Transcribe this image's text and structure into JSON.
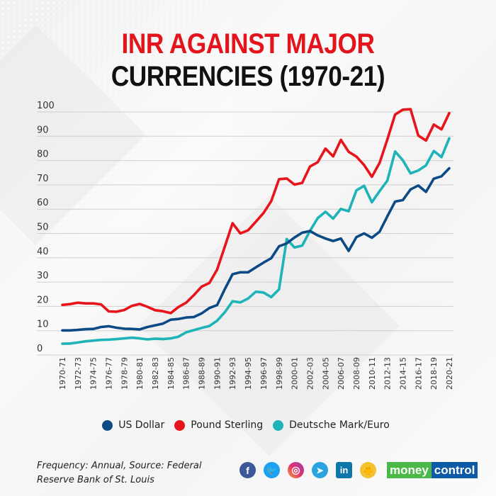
{
  "header": {
    "title_line1": "INR AGAINST MAJOR",
    "title_line2": "CURRENCIES (1970-21)"
  },
  "colors": {
    "us_dollar": "#0c4a86",
    "pound_sterling": "#e8141c",
    "deutsche_mark_euro": "#1db3b8",
    "title_red": "#e3141b",
    "gridline": "#cfcfcf"
  },
  "chart_data": {
    "type": "line",
    "title": "INR AGAINST MAJOR CURRENCIES (1970-21)",
    "xlabel": "",
    "ylabel": "",
    "ylim": [
      0,
      100
    ],
    "yticks": [
      0,
      10,
      20,
      30,
      40,
      50,
      60,
      70,
      80,
      90,
      100
    ],
    "grid": true,
    "legend_position": "bottom",
    "x": [
      "1970-71",
      "1971-72",
      "1972-73",
      "1973-74",
      "1974-75",
      "1975-76",
      "1976-77",
      "1977-78",
      "1978-79",
      "1979-80",
      "1980-81",
      "1981-82",
      "1982-83",
      "1983-84",
      "1984-85",
      "1985-86",
      "1986-87",
      "1987-88",
      "1988-89",
      "1989-90",
      "1990-91",
      "1991-92",
      "1992-93",
      "1993-94",
      "1994-95",
      "1995-96",
      "1996-97",
      "1997-98",
      "1998-99",
      "1999-00",
      "2000-01",
      "2001-02",
      "2002-03",
      "2003-04",
      "2004-05",
      "2005-06",
      "2006-07",
      "2007-08",
      "2008-09",
      "2009-10",
      "2010-11",
      "2011-12",
      "2012-13",
      "2013-14",
      "2014-15",
      "2015-16",
      "2016-17",
      "2017-18",
      "2018-19",
      "2019-20",
      "2020-21"
    ],
    "xtick_labels": [
      "1970-71",
      "1972-73",
      "1974-75",
      "1976-77",
      "1978-79",
      "1980-81",
      "1982-83",
      "1984-85",
      "1986-87",
      "1988-89",
      "1990-91",
      "1992-93",
      "1994-95",
      "1996-97",
      "1998-99",
      "2000-01",
      "2002-03",
      "2004-05",
      "2006-07",
      "2008-09",
      "2010-11",
      "2012-13",
      "2014-15",
      "2016-17",
      "2018-19",
      "2020-21"
    ],
    "series": [
      {
        "name": "US Dollar",
        "color": "#0c4a86",
        "values": [
          7.5,
          7.5,
          7.7,
          8.0,
          8.1,
          8.9,
          9.2,
          8.6,
          8.2,
          8.1,
          7.9,
          8.9,
          9.6,
          10.3,
          11.9,
          12.2,
          12.8,
          13.0,
          14.5,
          16.7,
          17.9,
          24.5,
          30.6,
          31.4,
          31.4,
          33.4,
          35.4,
          37.2,
          42.1,
          43.3,
          45.7,
          47.7,
          48.4,
          46.6,
          45.3,
          44.3,
          45.3,
          40.2,
          45.9,
          47.4,
          45.6,
          48.1,
          54.4,
          60.5,
          61.1,
          65.5,
          67.1,
          64.5,
          69.9,
          70.9,
          74.2
        ]
      },
      {
        "name": "Pound Sterling",
        "color": "#e8141c",
        "values": [
          18.0,
          18.3,
          18.9,
          18.6,
          18.6,
          18.2,
          15.3,
          15.2,
          15.9,
          17.6,
          18.4,
          17.2,
          15.8,
          15.4,
          14.6,
          17.1,
          18.9,
          22.0,
          25.5,
          27.0,
          32.5,
          42.0,
          51.6,
          47.4,
          48.7,
          52.2,
          55.8,
          60.7,
          69.7,
          70.0,
          67.5,
          68.2,
          74.9,
          76.7,
          82.3,
          79.1,
          85.9,
          81.0,
          79.0,
          75.5,
          70.7,
          76.4,
          86.0,
          96.3,
          98.3,
          98.5,
          87.7,
          85.6,
          92.2,
          90.2,
          96.9
        ]
      },
      {
        "name": "Deutsche Mark/Euro",
        "color": "#1db3b8",
        "values": [
          2.0,
          2.1,
          2.5,
          3.0,
          3.3,
          3.6,
          3.7,
          3.9,
          4.2,
          4.5,
          4.2,
          3.8,
          4.1,
          3.9,
          4.2,
          4.9,
          6.7,
          7.6,
          8.5,
          9.3,
          11.5,
          15.0,
          19.5,
          19.0,
          20.6,
          23.4,
          23.1,
          21.2,
          24.4,
          45.1,
          41.6,
          42.4,
          48.4,
          53.7,
          56.3,
          53.5,
          57.5,
          56.5,
          65.1,
          67.0,
          60.2,
          64.8,
          69.1,
          81.1,
          77.5,
          72.1,
          73.3,
          75.4,
          81.3,
          78.8,
          86.5
        ]
      }
    ]
  },
  "legend": {
    "items": [
      {
        "label": "US Dollar",
        "color": "#0c4a86"
      },
      {
        "label": "Pound Sterling",
        "color": "#e8141c"
      },
      {
        "label": "Deutsche Mark/Euro",
        "color": "#1db3b8"
      }
    ]
  },
  "footer": {
    "source_text": "Frequency: Annual, Source: Federal Reserve Bank of St. Louis",
    "social": [
      {
        "name": "facebook",
        "glyph": "f"
      },
      {
        "name": "twitter",
        "glyph": "🐦"
      },
      {
        "name": "instagram",
        "glyph": "◎"
      },
      {
        "name": "telegram",
        "glyph": "➤"
      },
      {
        "name": "linkedin",
        "glyph": "in"
      },
      {
        "name": "koo",
        "glyph": "🐥"
      }
    ],
    "brand_part1": "money",
    "brand_part2": "control"
  }
}
